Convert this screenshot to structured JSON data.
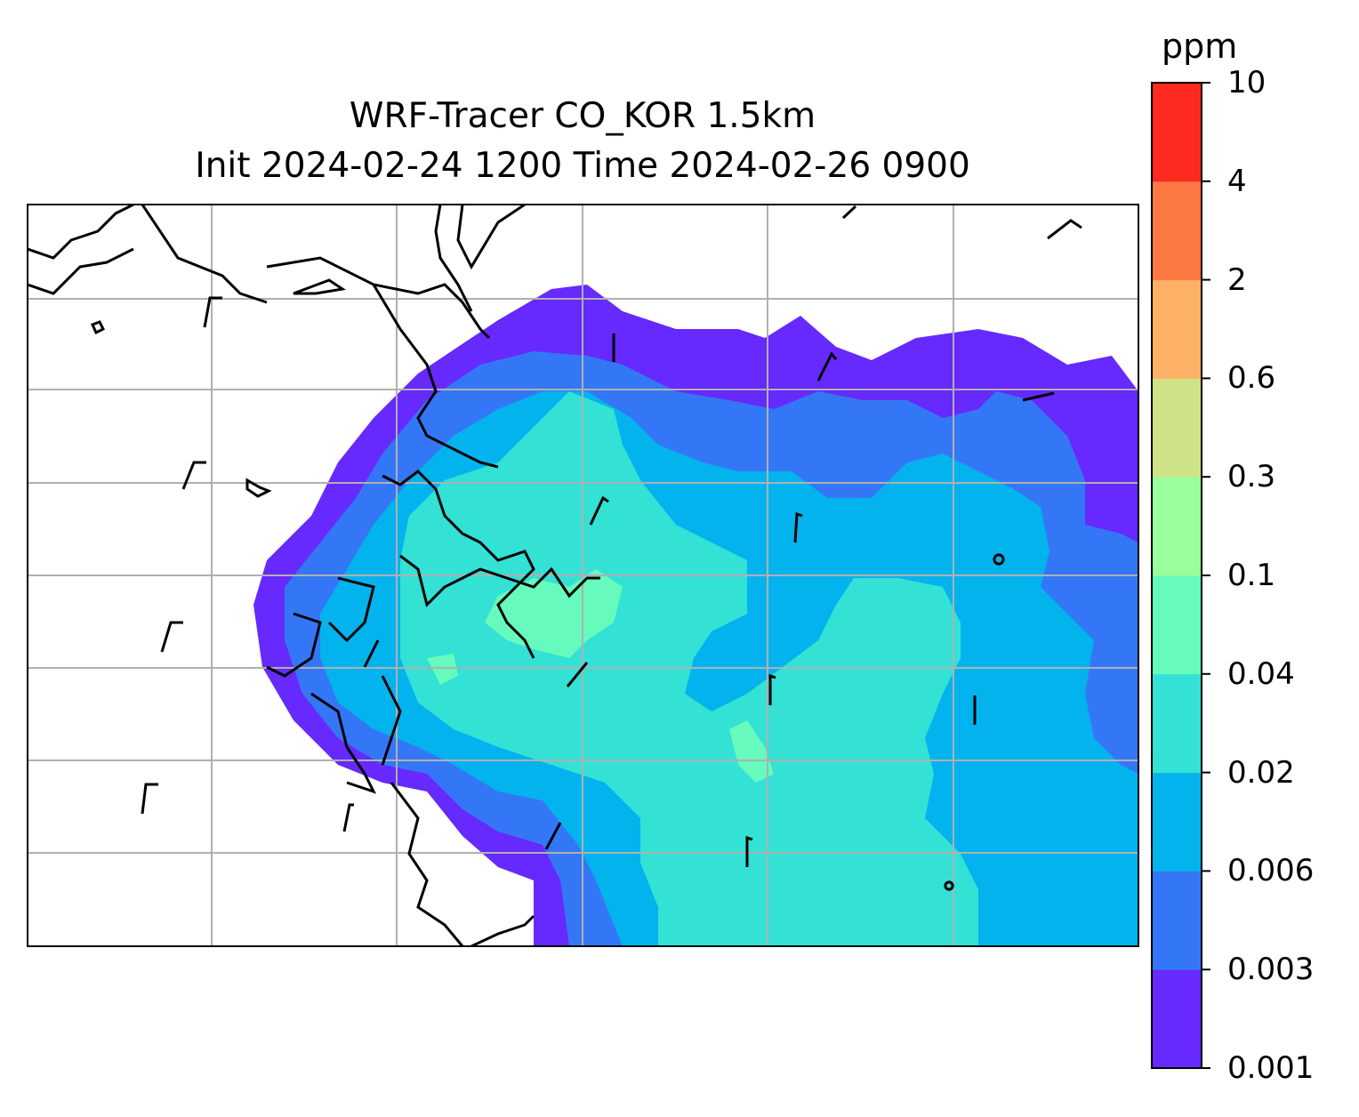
{
  "title_line1": "WRF-Tracer CO_KOR 1.5km",
  "title_line2": "Init 2024-02-24 1200 Time 2024-02-26 0900",
  "colorbar": {
    "unit": "ppm",
    "levels": [
      "0.001",
      "0.003",
      "0.006",
      "0.02",
      "0.04",
      "0.1",
      "0.3",
      "0.6",
      "2",
      "4",
      "10"
    ],
    "colors": [
      "#6629fe",
      "#3477f6",
      "#03b3ee",
      "#33e1d5",
      "#66fbbc",
      "#99fe9c",
      "#cde385",
      "#fdb164",
      "#fe7843",
      "#ff2a1f"
    ]
  },
  "map": {
    "background_color": "#ffffff",
    "grid_color": "#b0b0b0",
    "coastline_color": "#000000"
  }
}
